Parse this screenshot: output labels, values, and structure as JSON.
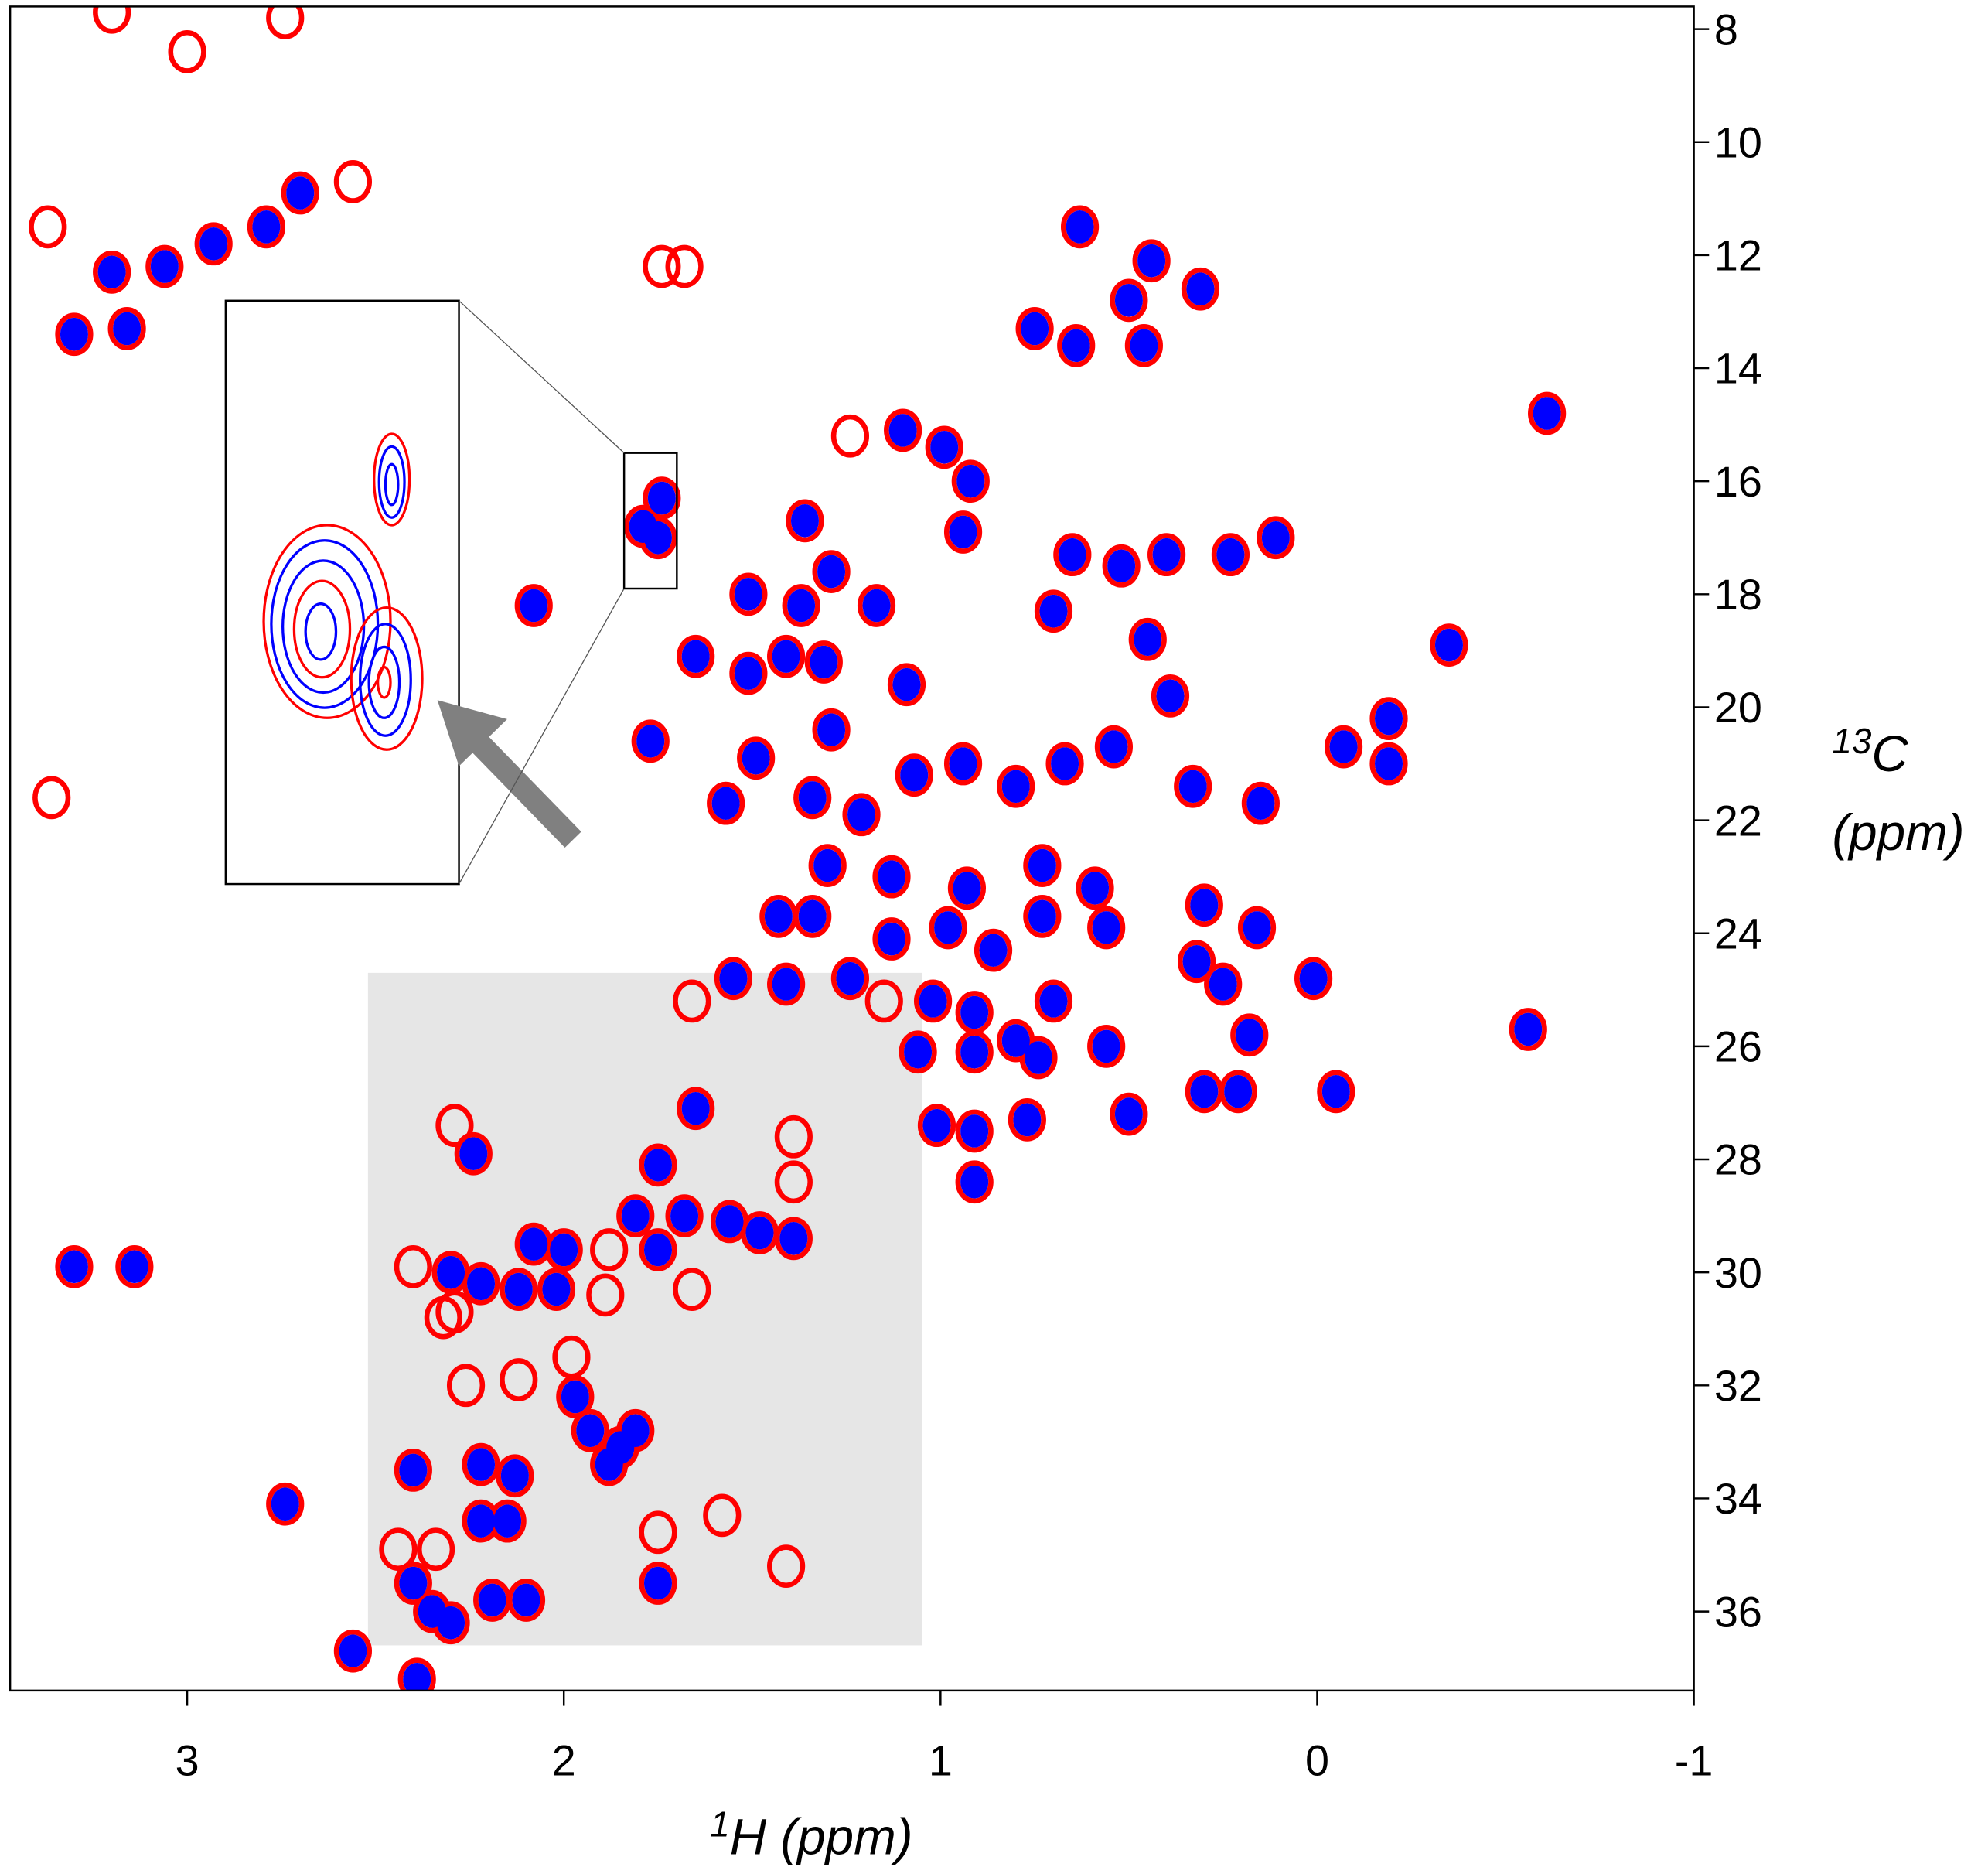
{
  "chart_data": {
    "type": "scatter",
    "xlabel_sup": "1",
    "xlabel": "H (ppm)",
    "ylabel_sup": "13",
    "ylabel": "C",
    "ylabel_2": "(ppm)",
    "xlim": [
      3.47,
      -1
    ],
    "xticks": [
      3,
      2,
      1,
      0,
      -1
    ],
    "ylim": [
      7.6,
      37.4
    ],
    "yticks": [
      8,
      10,
      12,
      14,
      16,
      18,
      20,
      22,
      24,
      26,
      28,
      30,
      32,
      34,
      36
    ],
    "highlight": {
      "x": [
        2.52,
        1.05
      ],
      "y": [
        24.7,
        36.6
      ]
    },
    "zoom_box": {
      "x": [
        1.84,
        1.7
      ],
      "y": [
        15.5,
        17.9
      ]
    },
    "series": [
      {
        "color": "#ff0000",
        "x": [
          3.3,
          3.16,
          3.2,
          3.06,
          2.93,
          2.79,
          2.7,
          2.08,
          1.79,
          1.75,
          1.74,
          0.63,
          0.44,
          0.5,
          0.31,
          0.75,
          0.64,
          0.46,
          -0.61,
          1.1,
          0.99,
          0.92,
          1.36,
          0.94,
          1.51,
          1.37,
          1.29,
          1.17,
          0.65,
          0.52,
          0.4,
          0.23,
          0.11,
          0.7,
          0.45,
          -0.35,
          1.65,
          1.51,
          1.41,
          1.31,
          1.09,
          1.77,
          1.49,
          1.29,
          0.39,
          -0.19,
          -0.07,
          -0.19,
          1.57,
          1.34,
          1.21,
          1.07,
          0.94,
          0.8,
          0.67,
          0.54,
          0.33,
          0.15,
          1.3,
          1.13,
          0.93,
          0.73,
          0.59,
          1.43,
          1.34,
          1.13,
          0.98,
          0.86,
          0.73,
          0.56,
          0.3,
          0.16,
          1.55,
          1.41,
          1.24,
          1.02,
          0.91,
          0.8,
          0.7,
          0.32,
          0.25,
          0.01,
          -0.56,
          1.06,
          0.91,
          0.74,
          0.56,
          0.18,
          0.3,
          0.21,
          -0.05,
          1.01,
          0.91,
          0.77,
          0.5,
          0.91,
          1.65,
          1.75,
          1.81,
          1.68,
          1.56,
          1.48,
          1.39,
          1.75,
          2.24,
          2.08,
          2.0,
          2.22,
          2.12,
          2.02,
          2.3,
          3.3,
          3.14,
          1.97,
          1.93,
          1.85,
          1.81,
          1.88,
          2.4,
          2.22,
          2.13,
          2.74,
          2.22,
          2.15,
          2.4,
          2.35,
          2.3,
          2.19,
          2.1,
          2.56,
          2.39,
          1.75,
          3.2,
          2.74,
          3.0,
          3.37,
          3.36,
          2.56,
          1.74,
          1.68,
          1.24,
          1.66,
          1.15,
          1.41,
          1.39,
          1.39,
          2.29,
          2.4,
          2.29,
          1.89,
          1.66,
          2.26,
          2.12,
          1.98,
          1.75,
          1.58,
          2.44,
          2.34,
          2.32,
          1.88
        ],
        "values": [
          13.4,
          13.3,
          12.3,
          12.2,
          11.8,
          11.5,
          10.9,
          18.2,
          16.8,
          17.0,
          16.3,
          11.5,
          12.1,
          12.8,
          12.6,
          13.3,
          13.6,
          13.6,
          14.8,
          15.1,
          15.4,
          16.0,
          16.7,
          16.9,
          18.0,
          18.2,
          17.6,
          18.2,
          17.3,
          17.5,
          17.3,
          17.3,
          17.0,
          18.3,
          18.8,
          18.9,
          19.1,
          19.4,
          19.1,
          19.2,
          19.6,
          20.6,
          20.9,
          20.4,
          19.8,
          20.2,
          20.7,
          21.0,
          21.7,
          21.6,
          21.9,
          21.2,
          21.0,
          21.4,
          21.0,
          20.7,
          21.4,
          21.7,
          22.8,
          23.0,
          23.2,
          22.8,
          23.2,
          23.7,
          23.7,
          24.1,
          23.9,
          24.3,
          23.7,
          23.9,
          23.5,
          23.9,
          24.8,
          24.9,
          24.8,
          25.2,
          25.4,
          25.9,
          25.2,
          24.5,
          24.9,
          24.8,
          25.7,
          26.1,
          26.1,
          26.2,
          26.0,
          25.8,
          26.8,
          26.8,
          26.8,
          27.4,
          27.5,
          27.3,
          27.2,
          28.4,
          27.1,
          28.1,
          29.0,
          29.0,
          29.1,
          29.3,
          29.4,
          29.6,
          27.9,
          29.5,
          29.6,
          30.2,
          30.3,
          30.3,
          30.0,
          29.9,
          29.9,
          32.2,
          32.8,
          33.1,
          32.8,
          33.4,
          33.5,
          33.4,
          33.6,
          34.1,
          34.4,
          34.4,
          35.5,
          36.0,
          36.2,
          35.8,
          35.8,
          36.7,
          37.2,
          35.5,
          7.7,
          7.8,
          8.4,
          11.5,
          21.6,
          10.7,
          12.2,
          12.2,
          15.2,
          25.2,
          25.2,
          35.2,
          27.6,
          28.4,
          27.4,
          29.9,
          30.7,
          30.4,
          30.3,
          32.0,
          31.9,
          31.5,
          34.6,
          34.3,
          34.9,
          34.9,
          30.8,
          29.6
        ]
      },
      {
        "color": "#0000ff",
        "x": [
          3.3,
          3.16,
          3.2,
          3.06,
          2.93,
          2.79,
          2.7,
          2.08,
          1.79,
          1.75,
          1.74,
          0.63,
          0.44,
          0.5,
          0.31,
          0.75,
          0.64,
          0.46,
          -0.61,
          1.1,
          0.99,
          0.92,
          1.36,
          0.94,
          1.51,
          1.37,
          1.29,
          1.17,
          0.65,
          0.52,
          0.4,
          0.23,
          0.11,
          0.7,
          0.45,
          -0.35,
          1.65,
          1.51,
          1.41,
          1.31,
          1.09,
          1.77,
          1.49,
          1.29,
          0.39,
          -0.19,
          -0.07,
          -0.19,
          1.57,
          1.34,
          1.21,
          1.07,
          0.94,
          0.8,
          0.67,
          0.54,
          0.33,
          0.15,
          1.3,
          1.13,
          0.93,
          0.73,
          0.59,
          1.43,
          1.34,
          1.13,
          0.98,
          0.86,
          0.73,
          0.56,
          0.3,
          0.16,
          1.55,
          1.41,
          1.24,
          1.02,
          0.91,
          0.8,
          0.7,
          0.32,
          0.25,
          0.01,
          -0.56,
          1.06,
          0.91,
          0.74,
          0.56,
          0.18,
          0.3,
          0.21,
          -0.05,
          1.01,
          0.91,
          0.77,
          0.5,
          0.91,
          1.65,
          1.75,
          1.81,
          1.68,
          1.56,
          1.48,
          1.39,
          1.75,
          2.24,
          2.08,
          2.0,
          2.22,
          2.12,
          2.02,
          2.3,
          3.3,
          3.14,
          1.97,
          1.93,
          1.85,
          1.81,
          1.88,
          2.4,
          2.22,
          2.13,
          2.74,
          2.22,
          2.15,
          2.4,
          2.35,
          2.3,
          2.19,
          2.1,
          2.56,
          2.39,
          1.75
        ],
        "values": [
          13.4,
          13.3,
          12.3,
          12.2,
          11.8,
          11.5,
          10.9,
          18.2,
          16.8,
          17.0,
          16.3,
          11.5,
          12.1,
          12.8,
          12.6,
          13.3,
          13.6,
          13.6,
          14.8,
          15.1,
          15.4,
          16.0,
          16.7,
          16.9,
          18.0,
          18.2,
          17.6,
          18.2,
          17.3,
          17.5,
          17.3,
          17.3,
          17.0,
          18.3,
          18.8,
          18.9,
          19.1,
          19.4,
          19.1,
          19.2,
          19.6,
          20.6,
          20.9,
          20.4,
          19.8,
          20.2,
          20.7,
          21.0,
          21.7,
          21.6,
          21.9,
          21.2,
          21.0,
          21.4,
          21.0,
          20.7,
          21.4,
          21.7,
          22.8,
          23.0,
          23.2,
          22.8,
          23.2,
          23.7,
          23.7,
          24.1,
          23.9,
          24.3,
          23.7,
          23.9,
          23.5,
          23.9,
          24.8,
          24.9,
          24.8,
          25.2,
          25.4,
          25.9,
          25.2,
          24.5,
          24.9,
          24.8,
          25.7,
          26.1,
          26.1,
          26.2,
          26.0,
          25.8,
          26.8,
          26.8,
          26.8,
          27.4,
          27.5,
          27.3,
          27.2,
          28.4,
          27.1,
          28.1,
          29.0,
          29.0,
          29.1,
          29.3,
          29.4,
          29.6,
          27.9,
          29.5,
          29.6,
          30.2,
          30.3,
          30.3,
          30.0,
          29.9,
          29.9,
          32.2,
          32.8,
          33.1,
          32.8,
          33.4,
          33.5,
          33.4,
          33.6,
          34.1,
          34.4,
          34.4,
          35.5,
          36.0,
          36.2,
          35.8,
          35.8,
          36.7,
          37.2,
          35.5
        ]
      }
    ]
  }
}
